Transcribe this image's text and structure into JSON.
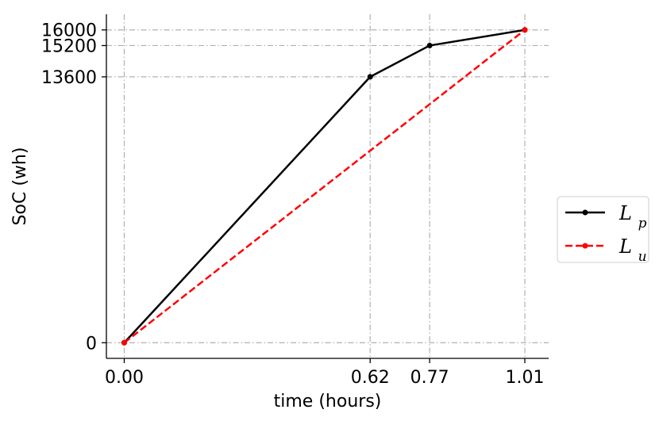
{
  "chart_data": {
    "type": "line",
    "title": "",
    "xlabel": "time (hours)",
    "ylabel": "SoC (wh)",
    "xlim": [
      -0.045,
      1.07
    ],
    "ylim": [
      -800,
      16800
    ],
    "x_ticks": [
      0.0,
      0.62,
      0.77,
      1.01
    ],
    "x_tick_labels": [
      "0.00",
      "0.62",
      "0.77",
      "1.01"
    ],
    "y_ticks": [
      0,
      13600,
      15200,
      16000
    ],
    "y_tick_labels": [
      "0",
      "13600",
      "15200",
      "16000"
    ],
    "grid": true,
    "grid_style": "dash-dot",
    "legend_position": "outside-right",
    "series": [
      {
        "name": "L_p",
        "label_main": "L",
        "label_sub": "p",
        "color": "#000000",
        "line_style": "solid",
        "marker": "dot",
        "x": [
          0.0,
          0.62,
          0.77,
          1.01
        ],
        "y": [
          0,
          13600,
          15200,
          16000
        ]
      },
      {
        "name": "L_u",
        "label_main": "L",
        "label_sub": "u",
        "color": "#ff0000",
        "line_style": "dashed",
        "marker": "dot",
        "x": [
          0.0,
          1.01
        ],
        "y": [
          0,
          16000
        ]
      }
    ]
  }
}
